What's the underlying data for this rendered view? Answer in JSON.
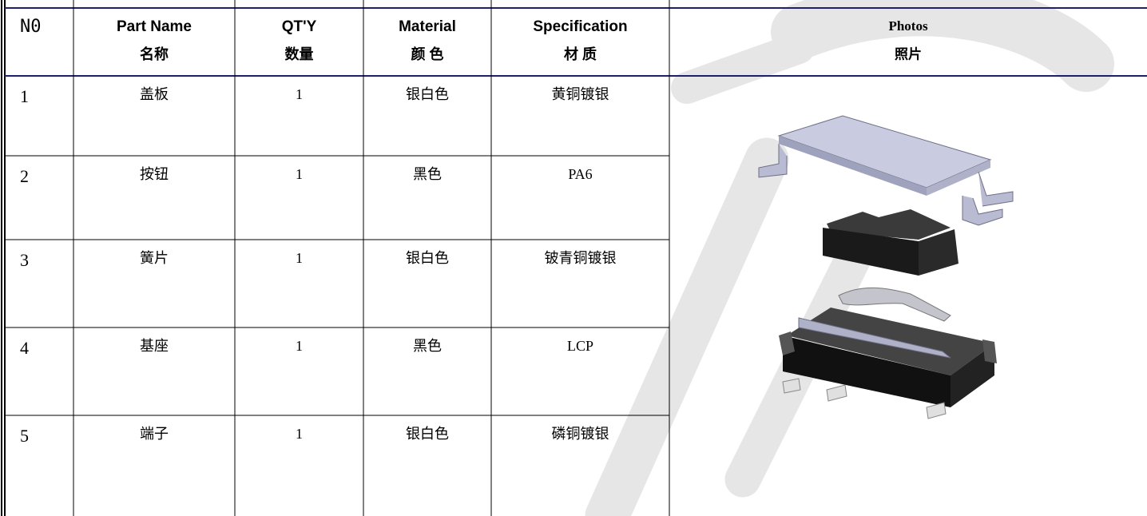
{
  "table": {
    "header": {
      "no": "N0",
      "columns": [
        {
          "en": "Part Name",
          "zh": "名称"
        },
        {
          "en": "QT'Y",
          "zh": "数量"
        },
        {
          "en": "Material",
          "zh": "颜 色"
        },
        {
          "en": "Specification",
          "zh": "材 质"
        }
      ],
      "photos": {
        "en": "Photos",
        "zh": "照片"
      }
    },
    "rows": [
      [
        "1",
        "盖板",
        "1",
        "银白色",
        "黄铜镀银"
      ],
      [
        "2",
        "按钮",
        "1",
        "黑色",
        "PA6"
      ],
      [
        "3",
        "簧片",
        "1",
        "银白色",
        "铍青铜镀银"
      ],
      [
        "4",
        "基座",
        "1",
        "黑色",
        "LCP"
      ],
      [
        "5",
        "端子",
        "1",
        "银白色",
        "磷铜镀银"
      ]
    ]
  }
}
